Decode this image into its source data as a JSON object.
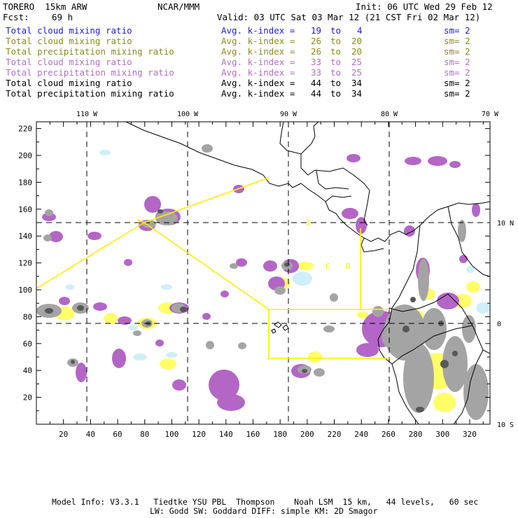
{
  "header": {
    "model": "TORERO  15km ARW",
    "center": "NCAR/MMM",
    "init": "Init: 06 UTC Wed 29 Feb 12",
    "fcst_label": "Fcst:",
    "fcst_value": "69 h",
    "valid": "Valid: 03 UTC Sat 03 Mar 12 (21 CST Fri 02 Mar 12)"
  },
  "legend": [
    {
      "field": "Total cloud mixing ratio",
      "kidx": "Avg. k-index =",
      "a": "19",
      "to": "to",
      "b": "4",
      "sm": "sm= 2",
      "color": "#2020cc"
    },
    {
      "field": "Total cloud mixing ratio",
      "kidx": "Avg. k-index =",
      "a": "26",
      "to": "to",
      "b": "20",
      "sm": "sm= 2",
      "color": "#8a8a20"
    },
    {
      "field": "Total precipitation mixing ratio",
      "kidx": "Avg. k-index =",
      "a": "26",
      "to": "to",
      "b": "20",
      "sm": "sm= 2",
      "color": "#8a8a20"
    },
    {
      "field": "Total cloud mixing ratio",
      "kidx": "Avg. k-index =",
      "a": "33",
      "to": "to",
      "b": "25",
      "sm": "sm= 2",
      "color": "#b070c0"
    },
    {
      "field": "Total precipitation mixing ratio",
      "kidx": "Avg. k-index =",
      "a": "33",
      "to": "to",
      "b": "25",
      "sm": "sm= 2",
      "color": "#b070c0"
    },
    {
      "field": "Total cloud mixing ratio",
      "kidx": "Avg. k-index =",
      "a": "44",
      "to": "to",
      "b": "34",
      "sm": "sm= 2",
      "color": "#000000"
    },
    {
      "field": "Total precipitation mixing ratio",
      "kidx": "Avg. k-index =",
      "a": "44",
      "to": "to",
      "b": "34",
      "sm": "sm= 2",
      "color": "#000000"
    }
  ],
  "map": {
    "lon_labels": [
      {
        "label": "110 W",
        "lon": -110
      },
      {
        "label": "100 W",
        "lon": -100
      },
      {
        "label": "90 W",
        "lon": -90
      },
      {
        "label": "80 W",
        "lon": -80
      },
      {
        "label": "70 W",
        "lon": -70
      }
    ],
    "lat_labels": [
      {
        "label": "10 N",
        "lat": 10
      },
      {
        "label": "0",
        "lat": 0
      },
      {
        "label": "10 S",
        "lat": -10
      }
    ],
    "x_ticks": [
      20,
      40,
      60,
      80,
      100,
      120,
      140,
      160,
      180,
      200,
      220,
      240,
      260,
      280,
      300,
      320
    ],
    "y_ticks": [
      20,
      40,
      60,
      80,
      100,
      120,
      140,
      160,
      180,
      200,
      220
    ],
    "grid_x_range": [
      0,
      335
    ],
    "grid_y_range": [
      0,
      225
    ],
    "region_letters": [
      "I",
      "C",
      "R"
    ],
    "colors": {
      "yellow": "#ffff66",
      "purple": "#b060c0",
      "gray": "#a0a0a0",
      "darkgray": "#606060",
      "cyan": "#c8ecf8",
      "box": "#ffee00"
    }
  },
  "footer": {
    "line1": "Model Info: V3.3.1   Tiedtke YSU PBL  Thompson    Noah LSM  15 km,   44 levels,   60 sec",
    "line2": "LW: Godd SW: Goddard DIFF: simple KM: 2D Smagor"
  }
}
